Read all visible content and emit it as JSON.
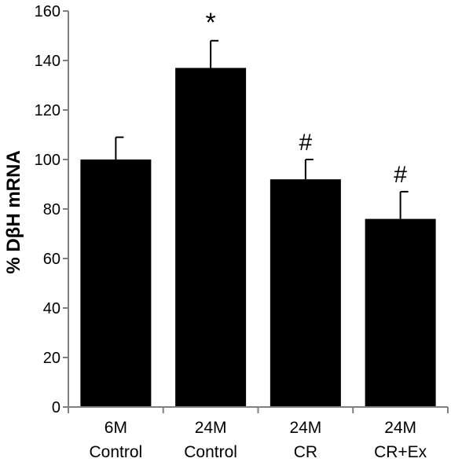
{
  "chart_data": {
    "type": "bar",
    "categories": [
      [
        "6M",
        "Control"
      ],
      [
        "24M",
        "Control"
      ],
      [
        "24M",
        "CR"
      ],
      [
        "24M",
        "CR+Ex"
      ]
    ],
    "values": [
      100,
      137,
      92,
      76
    ],
    "errors": [
      9,
      11,
      8,
      11
    ],
    "annotations": [
      "",
      "*",
      "#",
      "#"
    ],
    "ylabel": "% DβH mRNA",
    "xlabel": "",
    "title": "",
    "ylim": [
      0,
      160
    ],
    "yticks": [
      0,
      20,
      40,
      60,
      80,
      100,
      120,
      140,
      160
    ],
    "grid": false,
    "bar_color": "#000000",
    "axis_color": "#808080"
  }
}
